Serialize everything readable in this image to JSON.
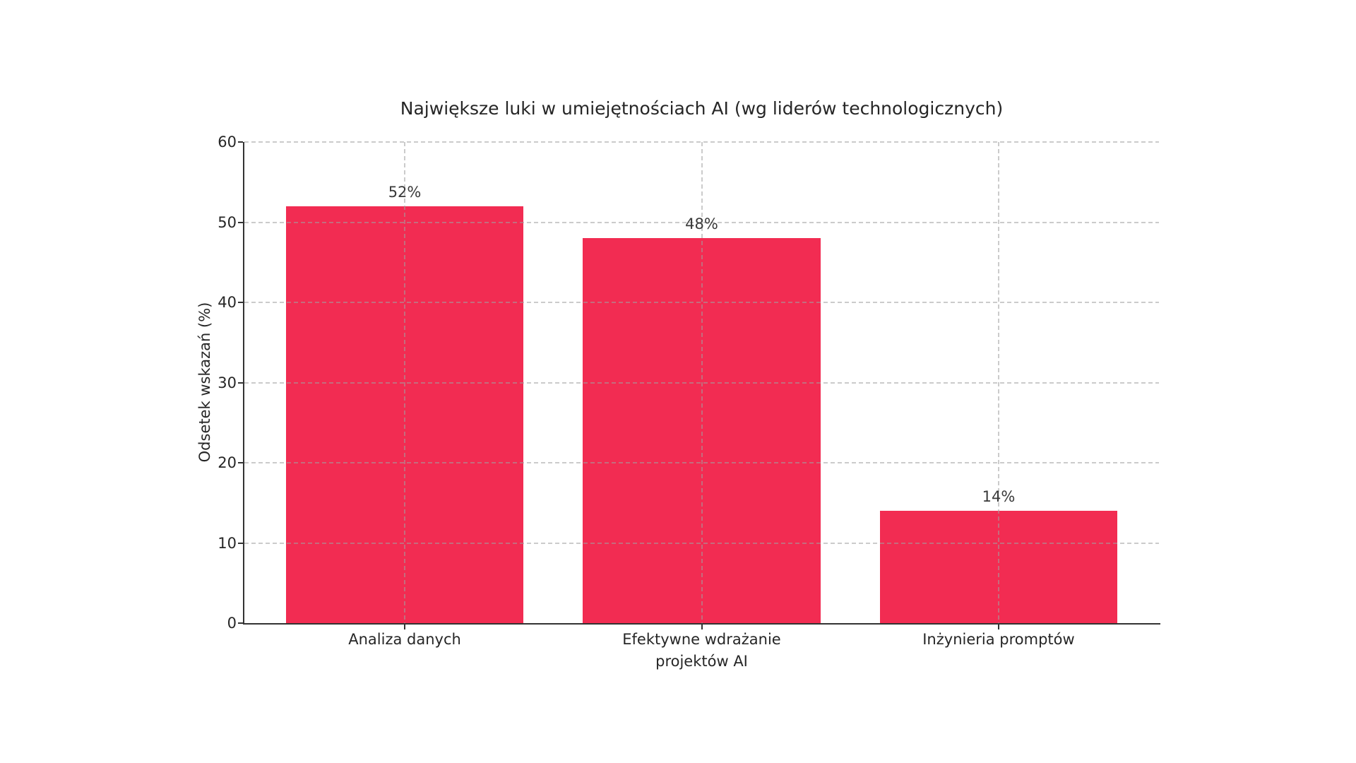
{
  "chart_data": {
    "type": "bar",
    "title": "Największe luki w umiejętnościach AI (wg liderów technologicznych)",
    "xlabel": "",
    "ylabel": "Odsetek wskazań (%)",
    "categories": [
      "Analiza danych",
      "Efektywne wdrażanie\nprojektów AI",
      "Inżynieria promptów"
    ],
    "values": [
      52,
      48,
      14
    ],
    "bar_labels": [
      "52%",
      "48%",
      "14%"
    ],
    "ylim": [
      0,
      60
    ],
    "yticks": [
      0,
      10,
      20,
      30,
      40,
      50,
      60
    ],
    "legend": "none",
    "grid": "dashed gridlines on both axes, drawn over bars",
    "colors": {
      "bar": "#F22C52",
      "grid": "#c9c9c9",
      "axis": "#333333",
      "text": "#262626",
      "background": "#ffffff"
    }
  }
}
